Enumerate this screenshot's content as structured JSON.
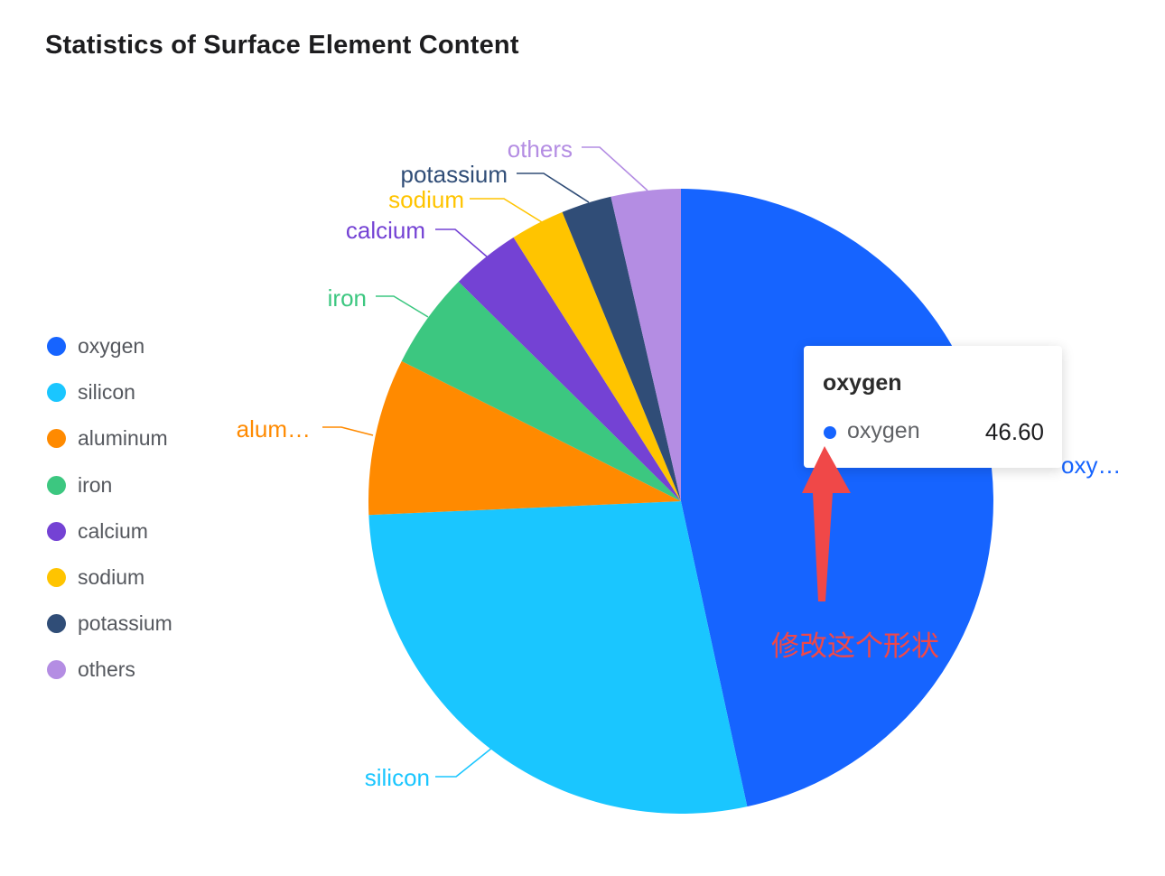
{
  "chart_data": {
    "type": "pie",
    "title": "Statistics of Surface Element Content",
    "categories": [
      "oxygen",
      "silicon",
      "aluminum",
      "iron",
      "calcium",
      "sodium",
      "potassium",
      "others"
    ],
    "values": [
      46.6,
      27.7,
      8.1,
      5.0,
      3.6,
      2.8,
      2.6,
      3.6
    ],
    "colors": [
      "#1664ff",
      "#1ac6ff",
      "#ff8a00",
      "#3cc780",
      "#7442d4",
      "#ffc400",
      "#304d77",
      "#b48de3"
    ],
    "slice_labels": [
      "oxy…",
      "silicon",
      "alum…",
      "iron",
      "calcium",
      "sodium",
      "potassium",
      "others"
    ],
    "legend_position": "left"
  },
  "tooltip": {
    "title": "oxygen",
    "series_name": "oxygen",
    "value": "46.60",
    "color": "#1664ff"
  },
  "annotation": {
    "text": "修改这个形状",
    "color": "#f04848"
  }
}
